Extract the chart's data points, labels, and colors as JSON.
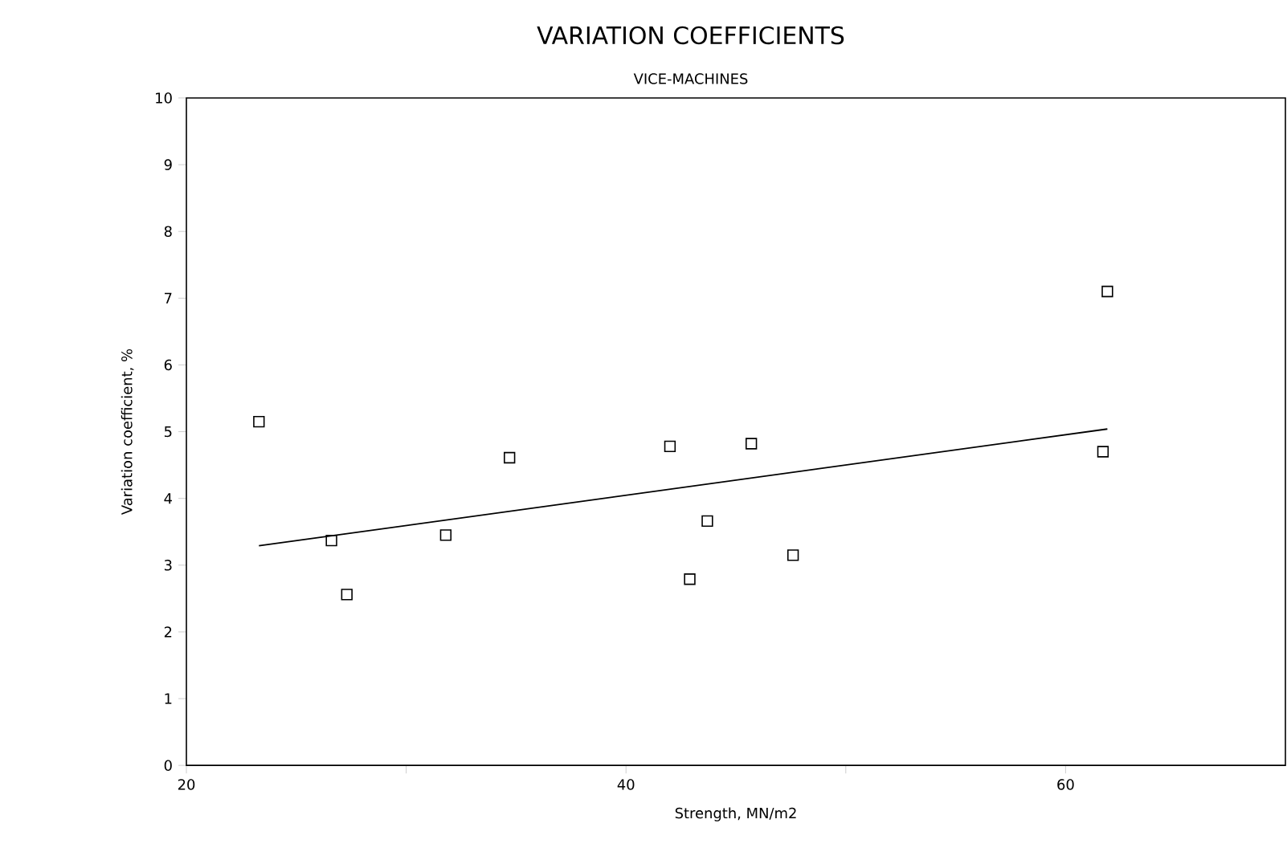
{
  "chart_data": {
    "type": "scatter",
    "title": "VARIATION COEFFICIENTS",
    "subtitle": "VICE-MACHINES",
    "xlabel": "Strength, MN/m2",
    "ylabel": "Variation coefficient, %",
    "xlim": [
      20,
      70
    ],
    "xticks": [
      20,
      {
        "value": 30,
        "label": null
      },
      40,
      {
        "value": 50,
        "label": null
      },
      60
    ],
    "ylim": [
      0,
      10
    ],
    "yticks": [
      0,
      1,
      2,
      3,
      4,
      5,
      6,
      7,
      8,
      9,
      10
    ],
    "grid": false,
    "series": [
      {
        "marker": "square",
        "color": "#000000",
        "x": [
          23.3,
          26.6,
          27.3,
          31.8,
          34.7,
          42.0,
          42.9,
          43.7,
          45.7,
          47.6,
          61.9,
          61.7
        ],
        "values": [
          5.15,
          3.37,
          2.56,
          3.45,
          4.61,
          4.78,
          2.79,
          3.66,
          4.82,
          3.15,
          7.1,
          4.7
        ]
      },
      {
        "type": "line",
        "marker": "none",
        "line_style": "solid",
        "color": "#000000",
        "x": [
          23.3,
          61.9
        ],
        "values": [
          3.29,
          5.04
        ]
      }
    ]
  }
}
